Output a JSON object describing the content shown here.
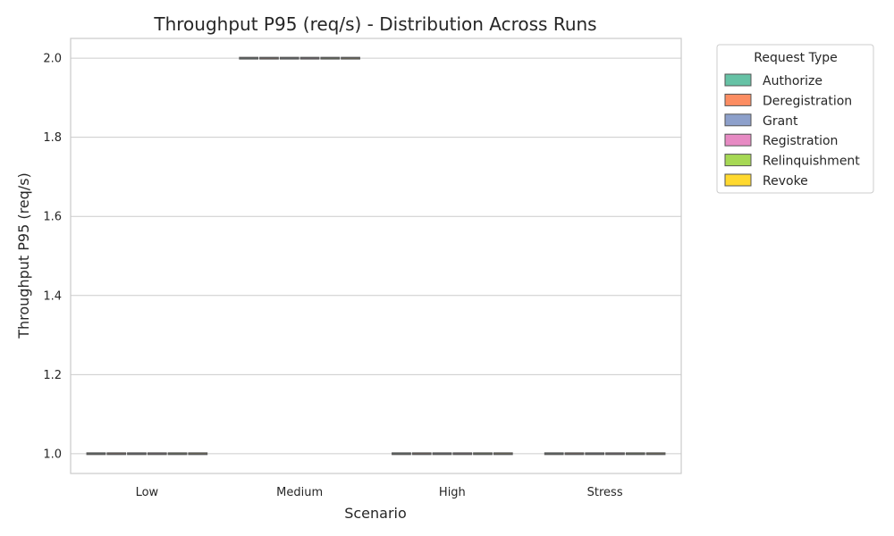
{
  "chart_data": {
    "type": "box",
    "title": "Throughput P95 (req/s) - Distribution Across Runs",
    "xlabel": "Scenario",
    "ylabel": "Throughput P95 (req/s)",
    "categories": [
      "Low",
      "Medium",
      "High",
      "Stress"
    ],
    "ylim": [
      0.95,
      2.05
    ],
    "yticks": [
      1.0,
      1.2,
      1.4,
      1.6,
      1.8,
      2.0
    ],
    "ytick_labels": [
      "1.0",
      "1.2",
      "1.4",
      "1.6",
      "1.8",
      "2.0"
    ],
    "grid": true,
    "legend": {
      "title": "Request Type",
      "placement": "outside-top-right"
    },
    "series": [
      {
        "name": "Authorize",
        "color": "#66c2a5",
        "values": [
          1,
          2,
          1,
          1
        ]
      },
      {
        "name": "Deregistration",
        "color": "#fc8d62",
        "values": [
          1,
          2,
          1,
          1
        ]
      },
      {
        "name": "Grant",
        "color": "#8da0cb",
        "values": [
          1,
          2,
          1,
          1
        ]
      },
      {
        "name": "Registration",
        "color": "#e78ac3",
        "values": [
          1,
          2,
          1,
          1
        ]
      },
      {
        "name": "Relinquishment",
        "color": "#a6d854",
        "values": [
          1,
          2,
          1,
          1
        ]
      },
      {
        "name": "Revoke",
        "color": "#ffd92f",
        "values": [
          1,
          2,
          1,
          1
        ]
      }
    ]
  }
}
